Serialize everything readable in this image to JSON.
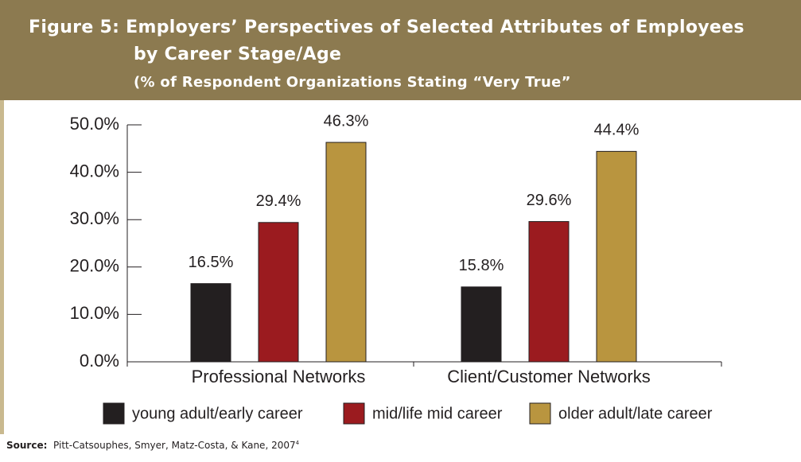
{
  "chart_data": {
    "type": "bar",
    "title": [
      "Figure 5: Employers’ Perspectives of Selected Attributes of Employees",
      "by Career Stage/Age"
    ],
    "subtitle": "(% of Respondent Organizations Stating “Very True”",
    "categories": [
      "Professional Networks",
      "Client/Customer Networks"
    ],
    "series": [
      {
        "name": "young adult/early career",
        "color": "#231f20",
        "values": [
          16.5,
          15.8
        ],
        "value_labels": [
          "16.5%",
          "15.8%"
        ]
      },
      {
        "name": "mid/life mid career",
        "color": "#9b1b1f",
        "values": [
          29.4,
          29.6
        ],
        "value_labels": [
          "29.4%",
          "29.6%"
        ]
      },
      {
        "name": "older adult/late career",
        "color": "#b9953f",
        "values": [
          46.3,
          44.4
        ],
        "value_labels": [
          "46.3%",
          "44.4%"
        ]
      }
    ],
    "ylim": [
      0,
      50
    ],
    "yticks": [
      {
        "value": 0,
        "label": "0.0%"
      },
      {
        "value": 10,
        "label": "10.0%"
      },
      {
        "value": 20,
        "label": "20.0%"
      },
      {
        "value": 30,
        "label": "30.0%"
      },
      {
        "value": 40,
        "label": "40.0%"
      },
      {
        "value": 50,
        "label": "50.0%"
      }
    ],
    "legend": "bottom",
    "source_label": "Source:",
    "source_text": "Pitt-Catsouphes, Smyer, Matz-Costa, & Kane, 2007",
    "source_note": "4"
  }
}
